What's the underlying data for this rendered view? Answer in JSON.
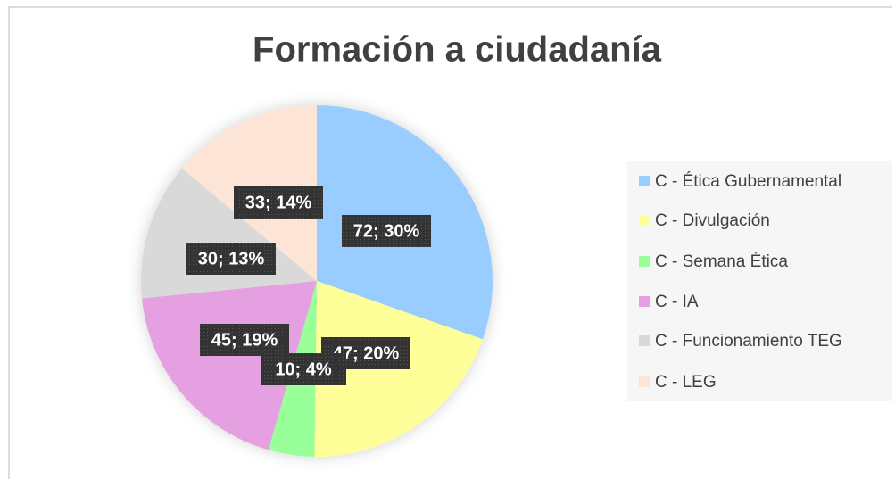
{
  "chart_data": {
    "type": "pie",
    "title": "Formación a ciudadanía",
    "categories": [
      "C - Ética Gubernamental",
      "C - Divulgación",
      "C - Semana Ética",
      "C - IA",
      "C - Funcionamiento TEG",
      "C - LEG"
    ],
    "values": [
      72,
      47,
      10,
      45,
      30,
      33
    ],
    "value_labels": [
      "72; 30%",
      "47; 20%",
      "10; 4%",
      "45; 19%",
      "30; 13%",
      "33; 14%"
    ],
    "colors": [
      "#99ccff",
      "#ffff99",
      "#99ff99",
      "#e4a0e0",
      "#d9d9d9",
      "#fce4d6"
    ],
    "legend": "right"
  }
}
